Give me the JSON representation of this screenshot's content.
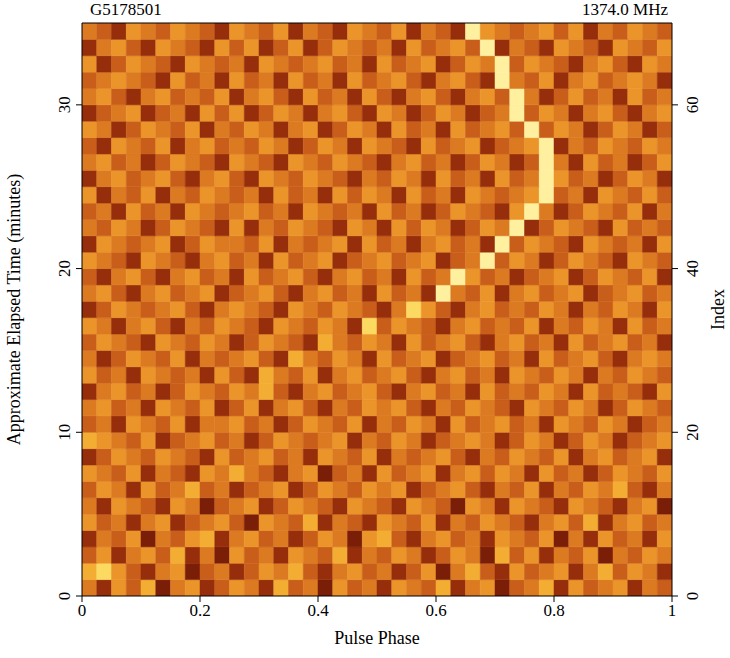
{
  "chart_data": {
    "type": "heatmap",
    "title": "G5178501",
    "subtitle": "1374.0 MHz",
    "x_label": "Pulse Phase",
    "y_label": "Approximate Elapsed Time (minutes)",
    "y2_label": "Index",
    "xlim": [
      0,
      1
    ],
    "xticks": [
      0,
      0.2,
      0.4,
      0.6,
      0.8,
      1
    ],
    "ylim": [
      0,
      35
    ],
    "yticks": [
      0,
      10,
      20,
      30
    ],
    "y2lim": [
      0,
      70
    ],
    "y2ticks": [
      0,
      20,
      40,
      60
    ],
    "cells": [
      [
        5,
        3,
        6,
        4,
        7,
        2,
        5,
        6,
        3,
        4,
        6,
        5,
        3,
        7,
        4,
        5,
        2,
        6,
        4,
        5,
        3,
        6,
        5,
        4,
        7,
        3,
        5,
        6,
        2,
        4,
        5,
        7,
        3,
        6,
        4,
        5,
        6,
        3,
        5,
        4
      ],
      [
        7,
        8,
        6,
        4,
        3,
        5,
        6,
        2,
        4,
        5,
        3,
        4,
        6,
        5,
        7,
        4,
        3,
        5,
        6,
        4,
        5,
        3,
        4,
        6,
        2,
        5,
        7,
        4,
        3,
        6,
        4,
        5,
        6,
        3,
        5,
        7,
        4,
        6,
        5,
        3
      ],
      [
        4,
        6,
        3,
        5,
        6,
        4,
        7,
        3,
        5,
        2,
        6,
        4,
        5,
        3,
        6,
        5,
        4,
        7,
        3,
        5,
        4,
        6,
        5,
        3,
        4,
        6,
        5,
        2,
        7,
        4,
        6,
        3,
        5,
        4,
        6,
        2,
        5,
        4,
        6,
        5
      ],
      [
        3,
        5,
        4,
        6,
        2,
        5,
        4,
        6,
        7,
        3,
        5,
        6,
        4,
        5,
        3,
        4,
        6,
        5,
        2,
        6,
        7,
        4,
        3,
        5,
        6,
        4,
        5,
        3,
        6,
        5,
        4,
        6,
        2,
        5,
        3,
        6,
        4,
        5,
        3,
        6
      ],
      [
        6,
        4,
        5,
        3,
        5,
        6,
        3,
        4,
        5,
        6,
        4,
        2,
        6,
        5,
        4,
        7,
        3,
        5,
        4,
        3,
        6,
        5,
        4,
        6,
        3,
        5,
        4,
        6,
        5,
        4,
        3,
        5,
        6,
        4,
        7,
        3,
        5,
        6,
        4,
        5
      ],
      [
        5,
        3,
        6,
        5,
        4,
        3,
        6,
        5,
        2,
        4,
        5,
        6,
        3,
        4,
        6,
        5,
        4,
        3,
        6,
        5,
        4,
        3,
        6,
        5,
        4,
        2,
        6,
        5,
        3,
        6,
        5,
        4,
        3,
        6,
        5,
        4,
        3,
        5,
        6,
        2
      ],
      [
        4,
        6,
        5,
        3,
        6,
        4,
        5,
        7,
        4,
        5,
        3,
        4,
        5,
        6,
        3,
        4,
        6,
        5,
        4,
        6,
        5,
        6,
        3,
        4,
        5,
        6,
        4,
        3,
        5,
        4,
        6,
        3,
        5,
        4,
        6,
        5,
        7,
        4,
        3,
        5
      ],
      [
        6,
        5,
        4,
        6,
        3,
        5,
        4,
        3,
        6,
        5,
        7,
        5,
        4,
        3,
        5,
        6,
        2,
        4,
        5,
        3,
        6,
        4,
        5,
        6,
        3,
        5,
        6,
        4,
        6,
        5,
        3,
        6,
        4,
        5,
        3,
        4,
        6,
        5,
        4,
        6
      ],
      [
        3,
        4,
        6,
        5,
        4,
        6,
        5,
        4,
        3,
        6,
        4,
        5,
        6,
        4,
        5,
        3,
        6,
        5,
        4,
        6,
        3,
        5,
        4,
        5,
        6,
        4,
        3,
        5,
        4,
        6,
        5,
        4,
        6,
        3,
        5,
        6,
        4,
        5,
        6,
        3
      ],
      [
        7,
        6,
        5,
        4,
        6,
        3,
        4,
        5,
        6,
        4,
        5,
        3,
        4,
        6,
        5,
        4,
        5,
        6,
        3,
        5,
        4,
        6,
        5,
        3,
        4,
        5,
        6,
        5,
        3,
        4,
        6,
        5,
        3,
        4,
        6,
        5,
        3,
        4,
        5,
        6
      ],
      [
        4,
        5,
        3,
        6,
        5,
        4,
        6,
        3,
        5,
        5,
        6,
        4,
        5,
        3,
        4,
        6,
        5,
        4,
        6,
        3,
        5,
        4,
        6,
        5,
        3,
        6,
        4,
        5,
        6,
        4,
        5,
        3,
        6,
        5,
        4,
        6,
        5,
        3,
        4,
        5
      ],
      [
        5,
        6,
        4,
        5,
        3,
        6,
        5,
        4,
        6,
        3,
        4,
        6,
        3,
        5,
        6,
        4,
        3,
        5,
        4,
        6,
        5,
        6,
        4,
        3,
        5,
        4,
        6,
        5,
        4,
        3,
        6,
        5,
        4,
        6,
        5,
        3,
        4,
        6,
        5,
        4
      ],
      [
        3,
        5,
        6,
        4,
        5,
        3,
        4,
        6,
        5,
        4,
        6,
        5,
        7,
        4,
        3,
        5,
        6,
        4,
        5,
        6,
        4,
        3,
        5,
        6,
        4,
        5,
        3,
        6,
        4,
        5,
        4,
        6,
        5,
        3,
        6,
        4,
        5,
        4,
        3,
        6
      ],
      [
        6,
        4,
        5,
        3,
        6,
        5,
        4,
        5,
        3,
        6,
        4,
        3,
        7,
        5,
        4,
        6,
        3,
        5,
        6,
        4,
        5,
        6,
        4,
        3,
        5,
        6,
        4,
        5,
        3,
        6,
        5,
        4,
        6,
        5,
        3,
        5,
        4,
        6,
        5,
        4
      ],
      [
        5,
        3,
        4,
        6,
        5,
        4,
        6,
        3,
        5,
        4,
        5,
        6,
        4,
        3,
        7,
        5,
        4,
        6,
        5,
        3,
        6,
        4,
        5,
        6,
        3,
        4,
        5,
        6,
        4,
        5,
        3,
        6,
        4,
        5,
        6,
        4,
        3,
        5,
        6,
        5
      ],
      [
        4,
        6,
        5,
        4,
        3,
        6,
        5,
        4,
        6,
        5,
        3,
        4,
        6,
        5,
        4,
        3,
        7,
        5,
        4,
        6,
        5,
        3,
        6,
        4,
        5,
        6,
        4,
        3,
        5,
        6,
        4,
        5,
        3,
        6,
        4,
        5,
        6,
        4,
        5,
        3
      ],
      [
        6,
        5,
        3,
        5,
        6,
        4,
        3,
        5,
        4,
        6,
        5,
        4,
        3,
        6,
        5,
        4,
        6,
        5,
        3,
        8,
        4,
        6,
        5,
        4,
        3,
        5,
        6,
        4,
        5,
        4,
        6,
        3,
        5,
        4,
        6,
        5,
        3,
        6,
        4,
        5
      ],
      [
        3,
        4,
        6,
        5,
        4,
        5,
        6,
        4,
        3,
        5,
        6,
        5,
        4,
        3,
        6,
        5,
        4,
        6,
        5,
        4,
        3,
        5,
        8,
        6,
        4,
        3,
        5,
        6,
        4,
        5,
        4,
        6,
        5,
        3,
        5,
        4,
        6,
        5,
        3,
        6
      ],
      [
        5,
        6,
        4,
        3,
        5,
        6,
        4,
        5,
        6,
        3,
        4,
        5,
        6,
        4,
        3,
        5,
        6,
        4,
        5,
        3,
        6,
        4,
        5,
        3,
        9,
        5,
        4,
        6,
        3,
        5,
        6,
        4,
        5,
        6,
        3,
        4,
        5,
        6,
        4,
        5
      ],
      [
        4,
        3,
        5,
        6,
        4,
        3,
        5,
        6,
        4,
        5,
        3,
        6,
        4,
        5,
        6,
        4,
        3,
        5,
        6,
        4,
        5,
        3,
        6,
        4,
        5,
        9,
        6,
        4,
        5,
        3,
        4,
        5,
        6,
        3,
        4,
        6,
        5,
        4,
        6,
        3
      ],
      [
        6,
        5,
        4,
        3,
        6,
        5,
        4,
        3,
        5,
        6,
        4,
        5,
        3,
        6,
        4,
        5,
        6,
        3,
        4,
        5,
        6,
        4,
        5,
        6,
        3,
        4,
        5,
        9,
        4,
        6,
        5,
        3,
        4,
        6,
        5,
        4,
        3,
        6,
        5,
        4
      ],
      [
        3,
        6,
        5,
        4,
        5,
        6,
        3,
        4,
        6,
        5,
        5,
        4,
        6,
        3,
        5,
        4,
        5,
        6,
        3,
        6,
        4,
        5,
        3,
        5,
        6,
        4,
        5,
        3,
        9,
        4,
        6,
        5,
        4,
        3,
        6,
        5,
        4,
        5,
        3,
        6
      ],
      [
        5,
        4,
        6,
        5,
        3,
        4,
        6,
        5,
        4,
        3,
        6,
        3,
        5,
        4,
        6,
        5,
        4,
        3,
        6,
        5,
        3,
        6,
        4,
        6,
        5,
        3,
        4,
        6,
        5,
        9,
        3,
        4,
        6,
        5,
        4,
        3,
        6,
        4,
        5,
        4
      ],
      [
        4,
        5,
        3,
        6,
        4,
        5,
        3,
        6,
        5,
        4,
        5,
        6,
        4,
        5,
        3,
        6,
        5,
        4,
        5,
        3,
        6,
        4,
        5,
        3,
        4,
        6,
        5,
        4,
        3,
        6,
        9,
        5,
        3,
        4,
        6,
        5,
        4,
        6,
        3,
        5
      ],
      [
        6,
        3,
        5,
        4,
        6,
        3,
        5,
        4,
        6,
        5,
        4,
        5,
        3,
        6,
        4,
        5,
        3,
        6,
        4,
        6,
        5,
        3,
        6,
        4,
        5,
        3,
        6,
        5,
        4,
        5,
        6,
        9,
        4,
        5,
        3,
        6,
        5,
        4,
        6,
        4
      ],
      [
        3,
        5,
        6,
        4,
        5,
        6,
        4,
        3,
        5,
        6,
        4,
        3,
        6,
        5,
        4,
        6,
        5,
        4,
        3,
        5,
        4,
        6,
        5,
        3,
        6,
        4,
        5,
        3,
        6,
        4,
        5,
        9,
        6,
        4,
        5,
        3,
        4,
        6,
        5,
        3
      ],
      [
        5,
        6,
        4,
        5,
        3,
        4,
        6,
        5,
        4,
        3,
        6,
        5,
        4,
        3,
        6,
        5,
        4,
        6,
        5,
        4,
        3,
        5,
        6,
        4,
        5,
        3,
        4,
        6,
        5,
        3,
        4,
        9,
        5,
        3,
        6,
        4,
        5,
        3,
        4,
        6
      ],
      [
        4,
        3,
        6,
        5,
        4,
        6,
        3,
        5,
        6,
        4,
        5,
        4,
        6,
        5,
        3,
        4,
        6,
        5,
        3,
        6,
        5,
        4,
        3,
        6,
        4,
        5,
        6,
        3,
        4,
        5,
        6,
        9,
        3,
        5,
        4,
        6,
        5,
        4,
        6,
        5
      ],
      [
        6,
        5,
        3,
        4,
        6,
        5,
        4,
        6,
        3,
        5,
        4,
        6,
        5,
        3,
        5,
        6,
        3,
        4,
        6,
        5,
        3,
        6,
        4,
        5,
        3,
        6,
        4,
        5,
        6,
        4,
        9,
        4,
        6,
        5,
        3,
        4,
        6,
        5,
        3,
        4
      ],
      [
        3,
        4,
        5,
        6,
        3,
        4,
        5,
        3,
        6,
        4,
        6,
        3,
        4,
        6,
        5,
        3,
        5,
        6,
        4,
        3,
        6,
        5,
        3,
        4,
        6,
        5,
        3,
        4,
        5,
        9,
        4,
        6,
        5,
        3,
        5,
        6,
        4,
        3,
        5,
        6
      ],
      [
        5,
        6,
        4,
        3,
        5,
        6,
        4,
        5,
        4,
        6,
        3,
        5,
        6,
        4,
        3,
        6,
        4,
        5,
        3,
        6,
        4,
        3,
        5,
        6,
        4,
        3,
        5,
        6,
        4,
        9,
        5,
        3,
        4,
        6,
        4,
        5,
        3,
        6,
        4,
        5
      ],
      [
        4,
        5,
        6,
        5,
        4,
        3,
        6,
        4,
        5,
        3,
        6,
        4,
        5,
        3,
        6,
        4,
        5,
        3,
        6,
        4,
        5,
        6,
        4,
        3,
        5,
        6,
        4,
        3,
        9,
        5,
        4,
        6,
        3,
        5,
        6,
        4,
        5,
        6,
        5,
        3
      ],
      [
        6,
        3,
        4,
        6,
        5,
        4,
        3,
        6,
        5,
        4,
        5,
        3,
        6,
        5,
        4,
        5,
        6,
        4,
        5,
        3,
        6,
        4,
        5,
        6,
        3,
        4,
        6,
        5,
        9,
        4,
        6,
        5,
        4,
        3,
        5,
        6,
        4,
        3,
        6,
        5
      ],
      [
        3,
        5,
        6,
        4,
        3,
        6,
        5,
        4,
        3,
        6,
        4,
        6,
        3,
        4,
        6,
        3,
        4,
        6,
        5,
        4,
        5,
        3,
        6,
        4,
        5,
        6,
        4,
        9,
        3,
        5,
        4,
        3,
        6,
        5,
        4,
        3,
        6,
        5,
        4,
        6
      ],
      [
        5,
        4,
        3,
        6,
        5,
        4,
        6,
        5,
        4,
        3,
        6,
        5,
        4,
        6,
        3,
        5,
        4,
        3,
        6,
        5,
        4,
        6,
        3,
        5,
        4,
        3,
        9,
        6,
        5,
        4,
        5,
        6,
        4,
        6,
        3,
        5,
        4,
        6,
        5,
        4
      ]
    ]
  }
}
